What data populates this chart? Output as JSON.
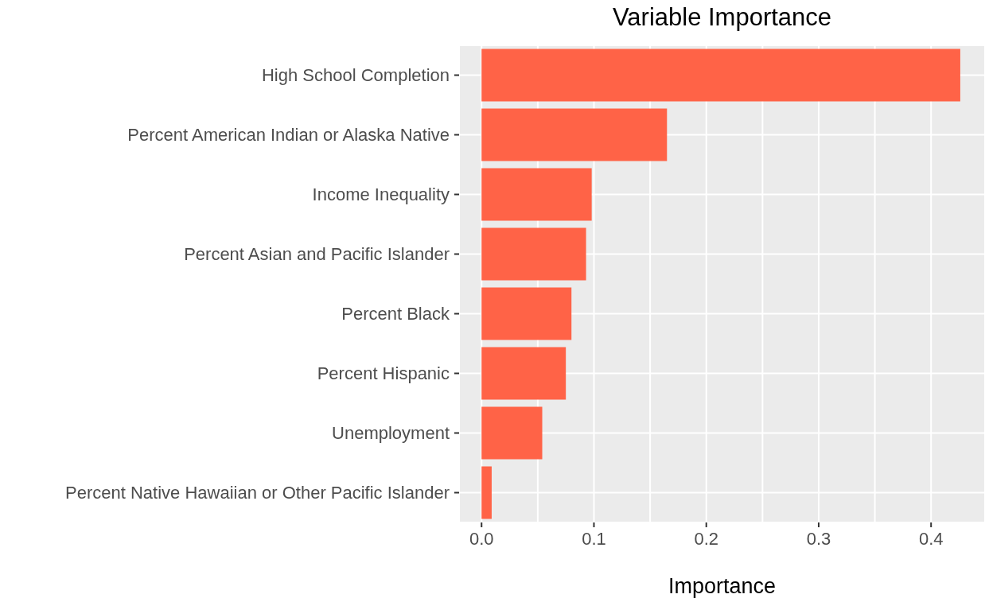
{
  "chart_data": {
    "type": "bar",
    "orientation": "horizontal",
    "title": "Variable Importance",
    "xlabel": "Importance",
    "categories": [
      "High School Completion",
      "Percent American Indian or Alaska Native",
      "Income Inequality",
      "Percent Asian and Pacific Islander",
      "Percent Black",
      "Percent Hispanic",
      "Unemployment",
      "Percent Native Hawaiian or Other Pacific Islander"
    ],
    "values": [
      0.426,
      0.165,
      0.098,
      0.093,
      0.08,
      0.075,
      0.054,
      0.009
    ],
    "color": "#ff6347",
    "xlim": [
      -0.02,
      0.448
    ],
    "xticks": [
      {
        "value": 0.0,
        "label": "0.0"
      },
      {
        "value": 0.05,
        "label": null
      },
      {
        "value": 0.1,
        "label": "0.1"
      },
      {
        "value": 0.15,
        "label": null
      },
      {
        "value": 0.2,
        "label": "0.2"
      },
      {
        "value": 0.25,
        "label": null
      },
      {
        "value": 0.3,
        "label": "0.3"
      },
      {
        "value": 0.35,
        "label": null
      },
      {
        "value": 0.4,
        "label": "0.4"
      }
    ],
    "grid": true
  }
}
